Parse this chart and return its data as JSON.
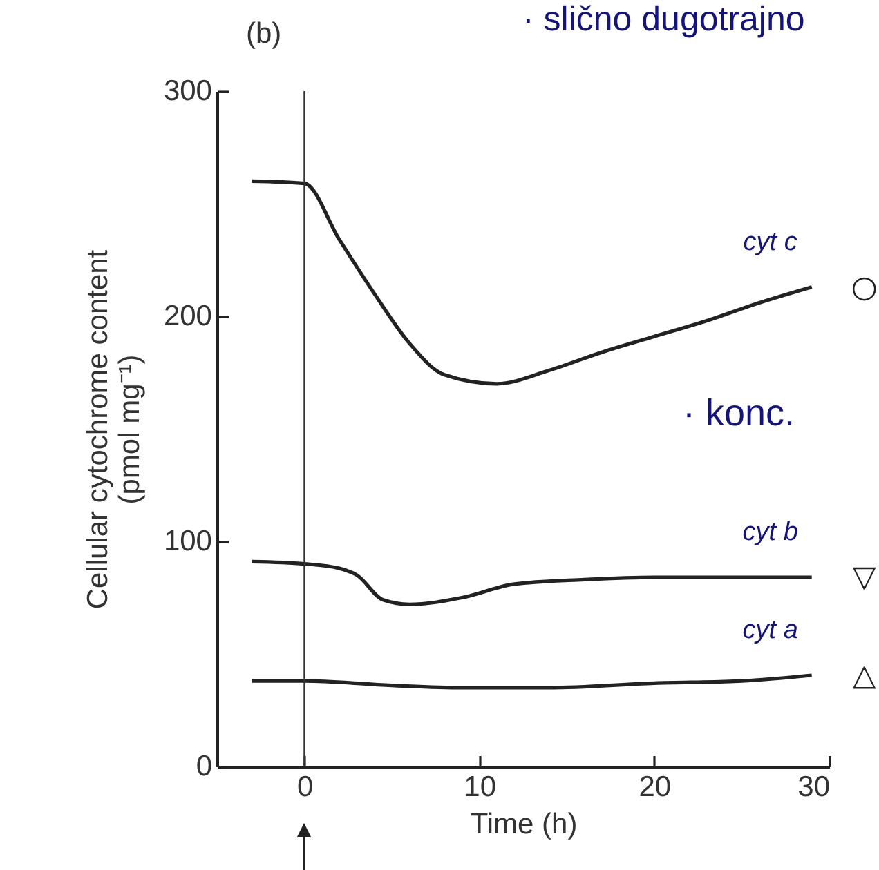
{
  "chart_data": {
    "type": "line",
    "title": "(b)",
    "xlabel": "Time (h)",
    "ylabel": "Cellular cytochrome content\n(pmol mg⁻¹)",
    "xlim": [
      -5,
      30
    ],
    "xticks": [
      0,
      10,
      20,
      30
    ],
    "ylim": [
      0,
      300
    ],
    "yticks": [
      0,
      100,
      200,
      300
    ],
    "grid": false,
    "legend": false,
    "marker": "none",
    "line_style": "solid",
    "series": [
      {
        "name": "cyt c",
        "color": "#222222",
        "x": [
          -3,
          0,
          2,
          4,
          6,
          8,
          11,
          14,
          17,
          20,
          23,
          26,
          29
        ],
        "values": [
          260,
          259,
          234,
          210,
          188,
          174,
          170,
          176,
          184,
          191,
          198,
          206,
          213
        ]
      },
      {
        "name": "cyt b",
        "color": "#222222",
        "x": [
          -3,
          0,
          2,
          3,
          4.5,
          6,
          9,
          12,
          16,
          20,
          24,
          29
        ],
        "values": [
          91,
          90,
          88,
          85,
          74,
          72,
          75,
          81,
          83,
          84,
          84,
          84
        ]
      },
      {
        "name": "cyt a",
        "color": "#222222",
        "x": [
          -3,
          0,
          5,
          9,
          14,
          20,
          25,
          29
        ],
        "values": [
          38,
          38,
          36,
          35,
          35,
          37,
          38,
          40.5
        ]
      }
    ],
    "ref_lines": [
      {
        "axis": "x",
        "value": 0,
        "color": "#333333"
      }
    ],
    "annotations": [
      "· slično dugotrajno",
      "· konc.",
      "○",
      "▽",
      "△"
    ]
  }
}
